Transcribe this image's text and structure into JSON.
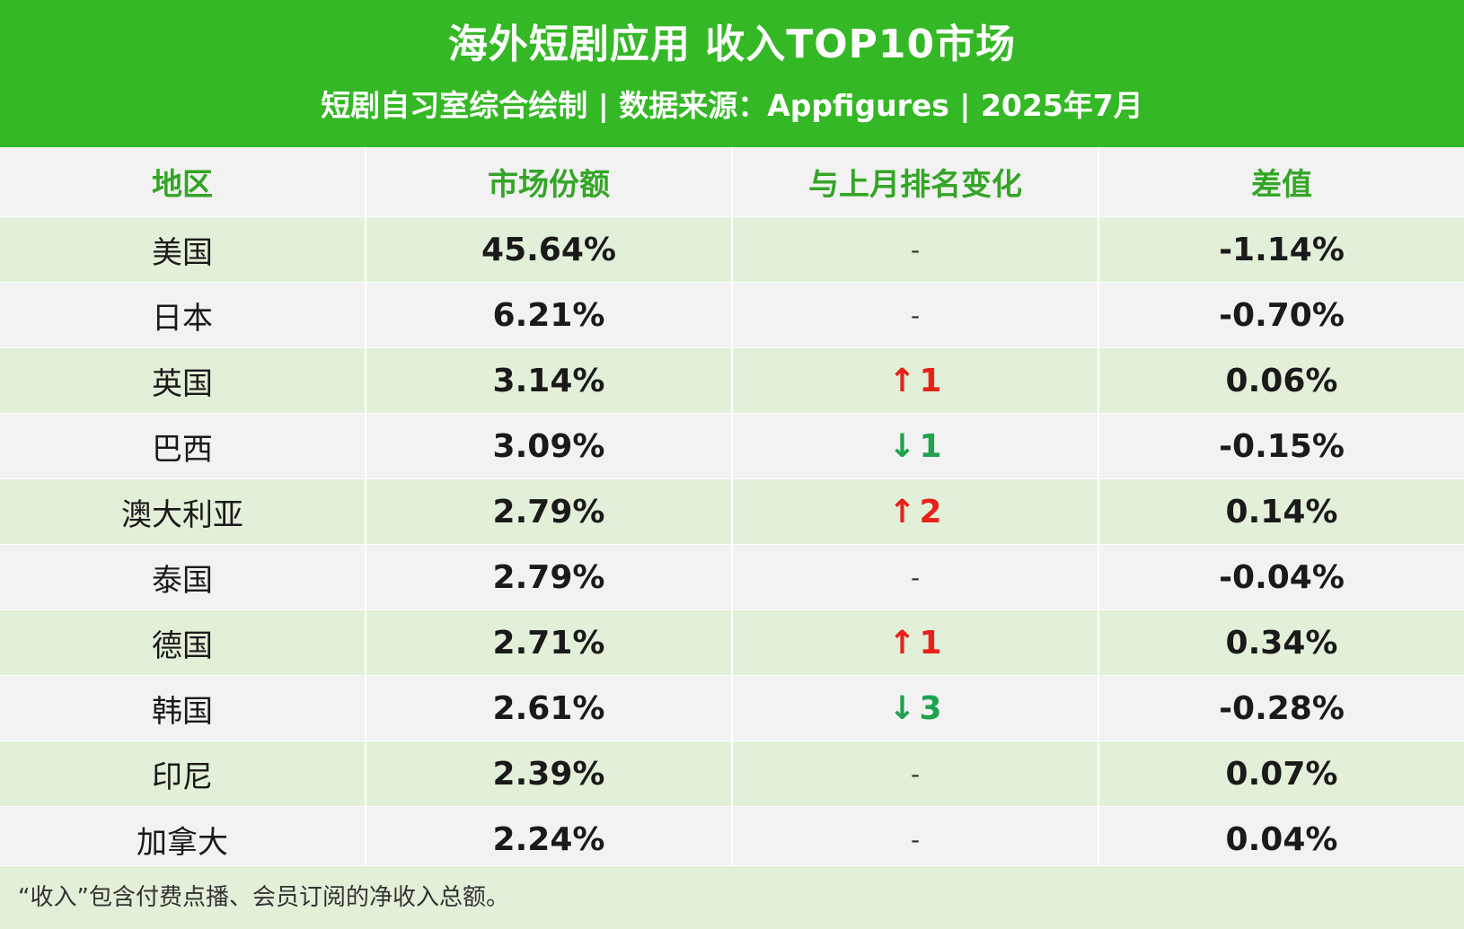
{
  "header": {
    "title": "海外短剧应用 收入TOP10市场",
    "subtitle": "短剧自习室综合绘制 | 数据来源：Appfigures | 2025年7月"
  },
  "colors": {
    "brand_green": "#34b825",
    "header_text_green": "#34a526",
    "up_red": "#e8221b",
    "down_green": "#1fa24f",
    "row_green": "#e3f0d9",
    "row_gray": "#f2f2f2"
  },
  "chart_data": {
    "type": "table",
    "columns": [
      "地区",
      "市场份额",
      "与上月排名变化",
      "差值"
    ],
    "rows": [
      {
        "region": "美国",
        "share": "45.64%",
        "change_dir": "none",
        "change_text": "-",
        "diff": "-1.14%"
      },
      {
        "region": "日本",
        "share": "6.21%",
        "change_dir": "none",
        "change_text": "-",
        "diff": "-0.70%"
      },
      {
        "region": "英国",
        "share": "3.14%",
        "change_dir": "up",
        "change_text": "1",
        "diff": "0.06%"
      },
      {
        "region": "巴西",
        "share": "3.09%",
        "change_dir": "down",
        "change_text": "1",
        "diff": "-0.15%"
      },
      {
        "region": "澳大利亚",
        "share": "2.79%",
        "change_dir": "up",
        "change_text": "2",
        "diff": "0.14%"
      },
      {
        "region": "泰国",
        "share": "2.79%",
        "change_dir": "none",
        "change_text": "-",
        "diff": "-0.04%"
      },
      {
        "region": "德国",
        "share": "2.71%",
        "change_dir": "up",
        "change_text": "1",
        "diff": "0.34%"
      },
      {
        "region": "韩国",
        "share": "2.61%",
        "change_dir": "down",
        "change_text": "3",
        "diff": "-0.28%"
      },
      {
        "region": "印尼",
        "share": "2.39%",
        "change_dir": "none",
        "change_text": "-",
        "diff": "0.07%"
      },
      {
        "region": "加拿大",
        "share": "2.24%",
        "change_dir": "none",
        "change_text": "-",
        "diff": "0.04%"
      }
    ]
  },
  "footer": {
    "note": "“收入”包含付费点播、会员订阅的净收入总额。"
  }
}
